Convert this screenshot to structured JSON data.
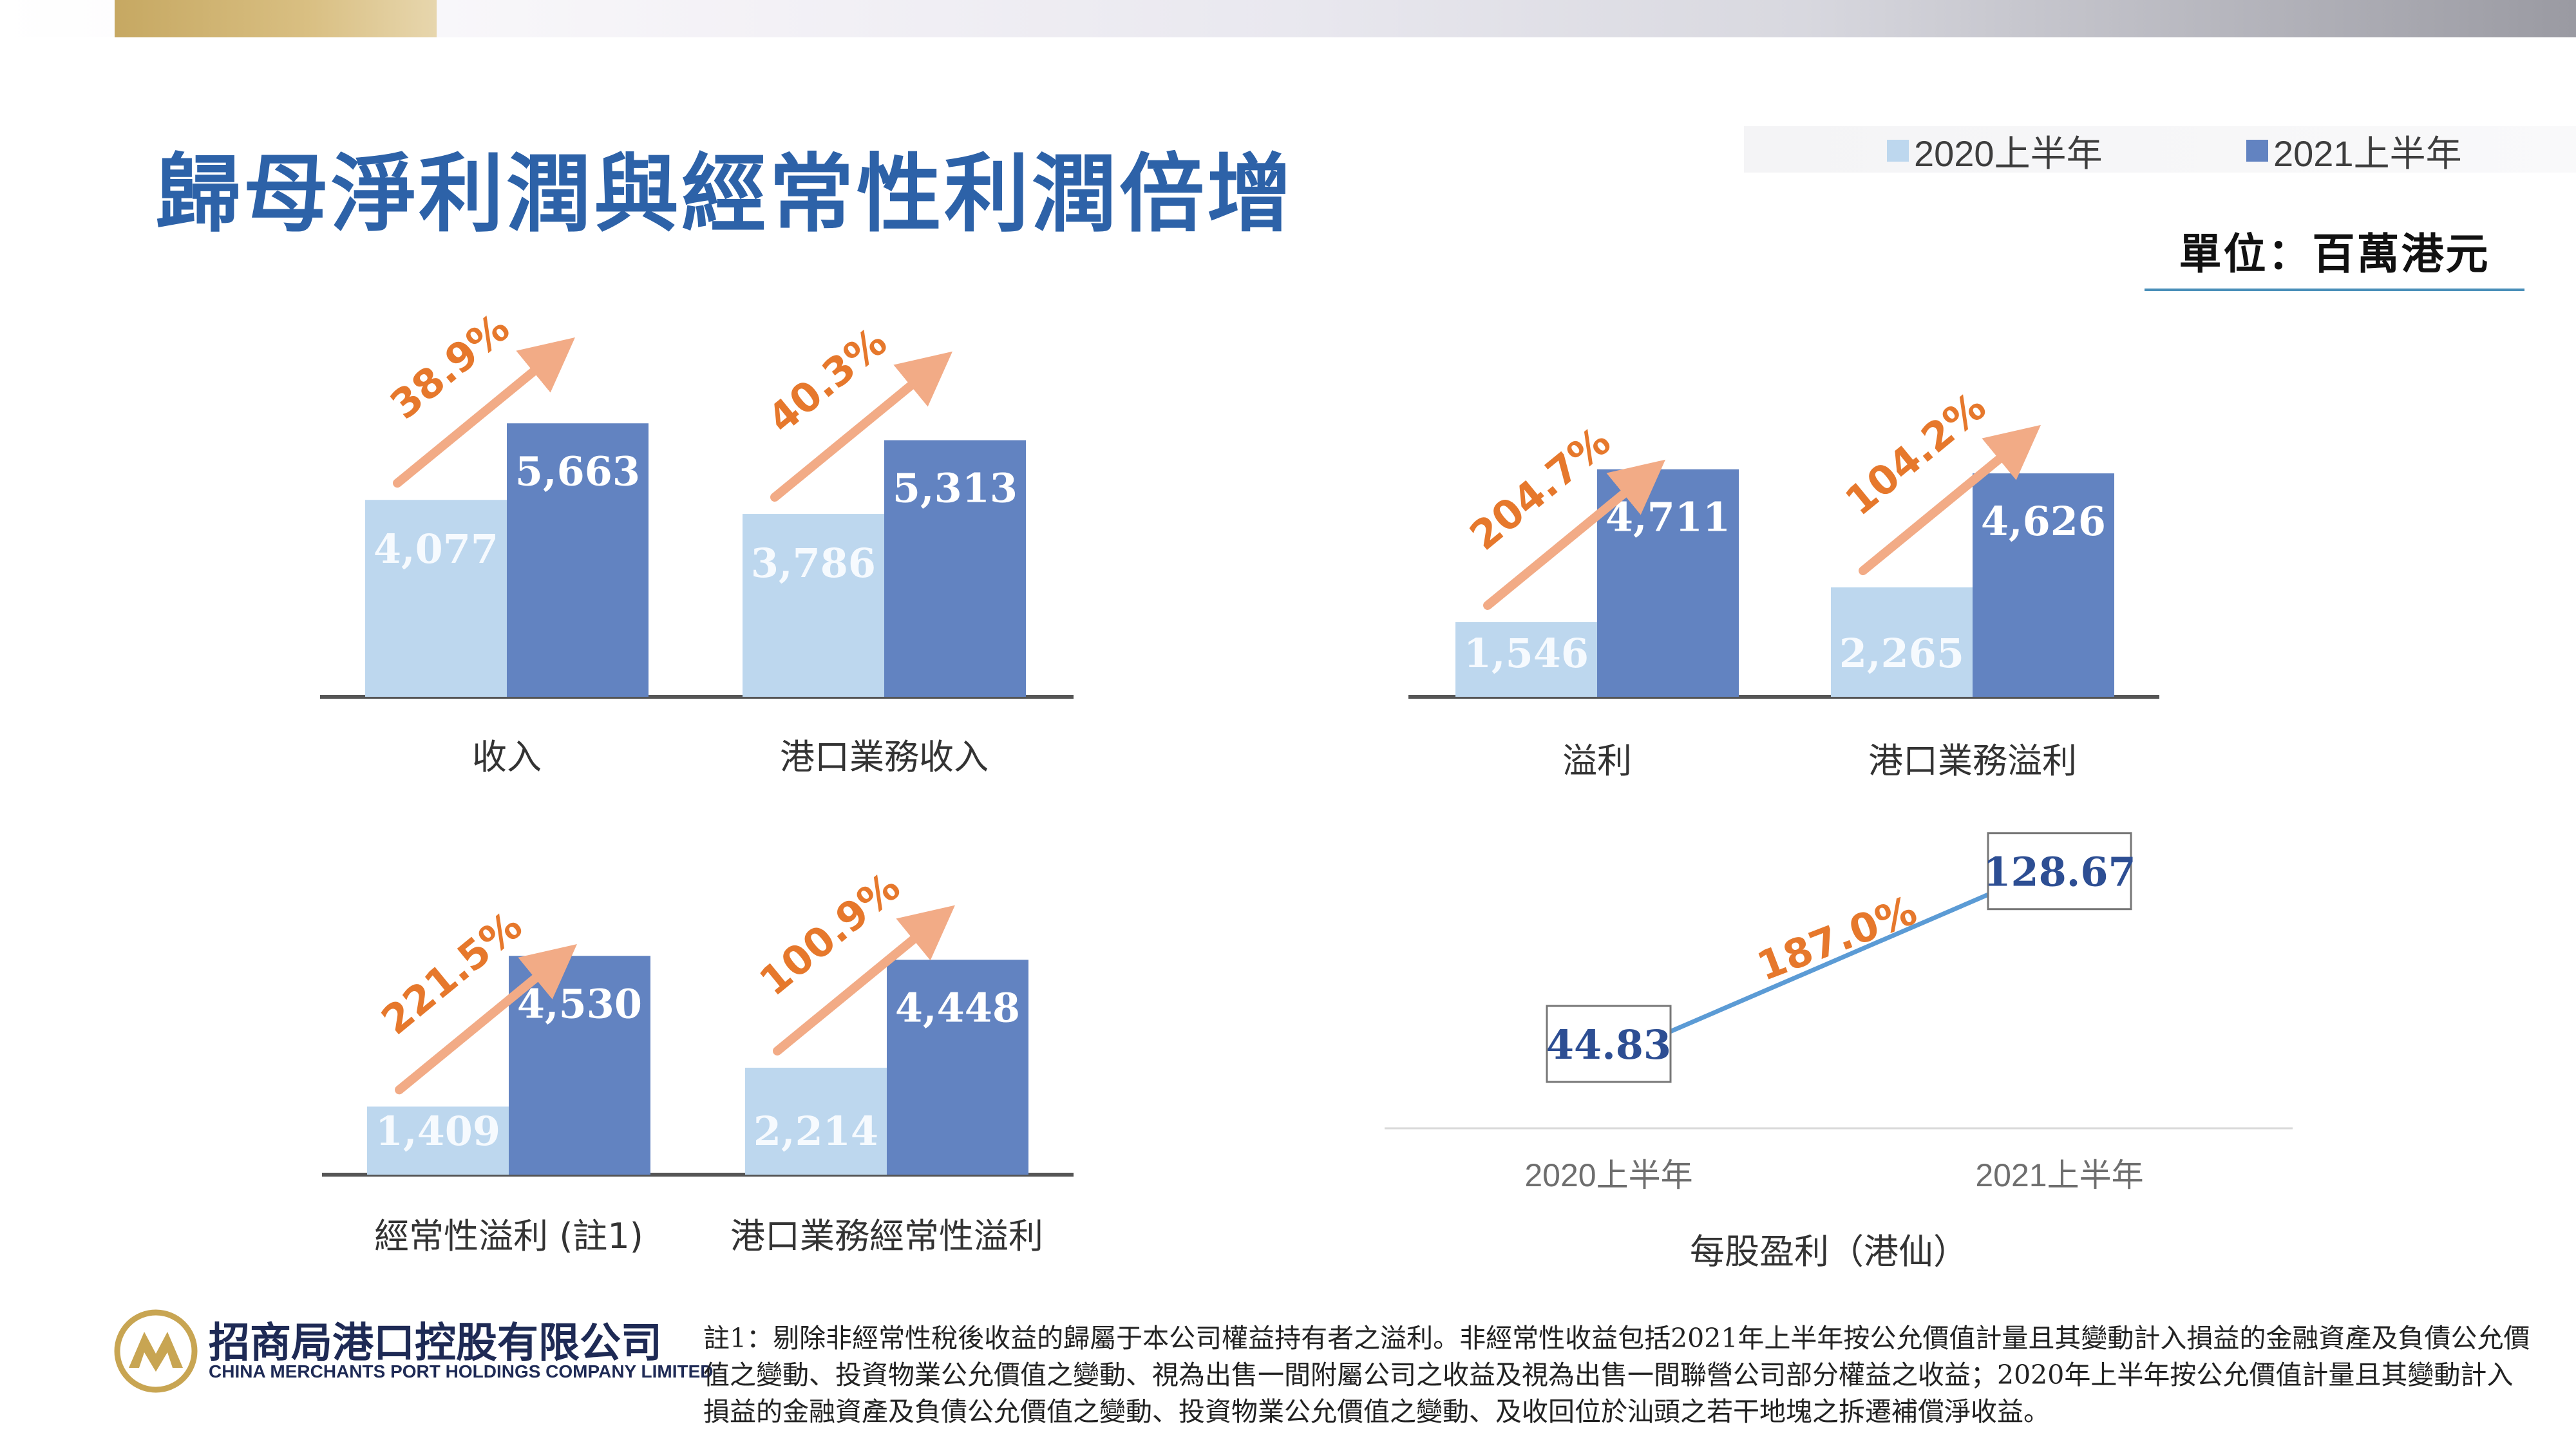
{
  "title": "歸母淨利潤與經常性利潤倍增",
  "unit": "單位：百萬港元",
  "legend": [
    {
      "label": "2020上半年",
      "color": "#bdd7ee"
    },
    {
      "label": "2021上半年",
      "color": "#6283c1"
    }
  ],
  "colors": {
    "growth": "#e6782c",
    "arrow": "#f2ab86",
    "eps_line": "#5b9bd5",
    "value_dark": "#2d4e93"
  },
  "chart_data": [
    {
      "type": "bar",
      "category": "收入",
      "series": [
        {
          "name": "2020上半年",
          "value": 4077,
          "label": "4,077"
        },
        {
          "name": "2021上半年",
          "value": 5663,
          "label": "5,663"
        }
      ],
      "growth": "38.9%"
    },
    {
      "type": "bar",
      "category": "港口業務收入",
      "series": [
        {
          "name": "2020上半年",
          "value": 3786,
          "label": "3,786"
        },
        {
          "name": "2021上半年",
          "value": 5313,
          "label": "5,313"
        }
      ],
      "growth": "40.3%"
    },
    {
      "type": "bar",
      "category": "溢利",
      "series": [
        {
          "name": "2020上半年",
          "value": 1546,
          "label": "1,546"
        },
        {
          "name": "2021上半年",
          "value": 4711,
          "label": "4,711"
        }
      ],
      "growth": "204.7%"
    },
    {
      "type": "bar",
      "category": "港口業務溢利",
      "series": [
        {
          "name": "2020上半年",
          "value": 2265,
          "label": "2,265"
        },
        {
          "name": "2021上半年",
          "value": 4626,
          "label": "4,626"
        }
      ],
      "growth": "104.2%"
    },
    {
      "type": "bar",
      "category": "經常性溢利 (註1)",
      "series": [
        {
          "name": "2020上半年",
          "value": 1409,
          "label": "1,409"
        },
        {
          "name": "2021上半年",
          "value": 4530,
          "label": "4,530"
        }
      ],
      "growth": "221.5%"
    },
    {
      "type": "bar",
      "category": "港口業務經常性溢利",
      "series": [
        {
          "name": "2020上半年",
          "value": 2214,
          "label": "2,214"
        },
        {
          "name": "2021上半年",
          "value": 4448,
          "label": "4,448"
        }
      ],
      "growth": "100.9%"
    },
    {
      "type": "line",
      "xlabel": "每股盈利（港仙）",
      "x": [
        "2020上半年",
        "2021上半年"
      ],
      "values": [
        44.83,
        128.67
      ],
      "labels": [
        "44.83",
        "128.67"
      ],
      "growth": "187.0%"
    }
  ],
  "footer": {
    "logo_cn": "招商局港口控股有限公司",
    "logo_en": "CHINA MERCHANTS PORT HOLDINGS COMPANY LIMITED",
    "note": "註1：剔除非經常性稅後收益的歸屬于本公司權益持有者之溢利。非經常性收益包括2021年上半年按公允價值計量且其變動計入損益的金融資產及負債公允價值之變動、投資物業公允價值之變動、視為出售一間附屬公司之收益及視為出售一間聯營公司部分權益之收益；2020年上半年按公允價值計量且其變動計入損益的金融資產及負債公允價值之變動、投資物業公允價值之變動、及收回位於汕頭之若干地塊之拆遷補償淨收益。"
  }
}
